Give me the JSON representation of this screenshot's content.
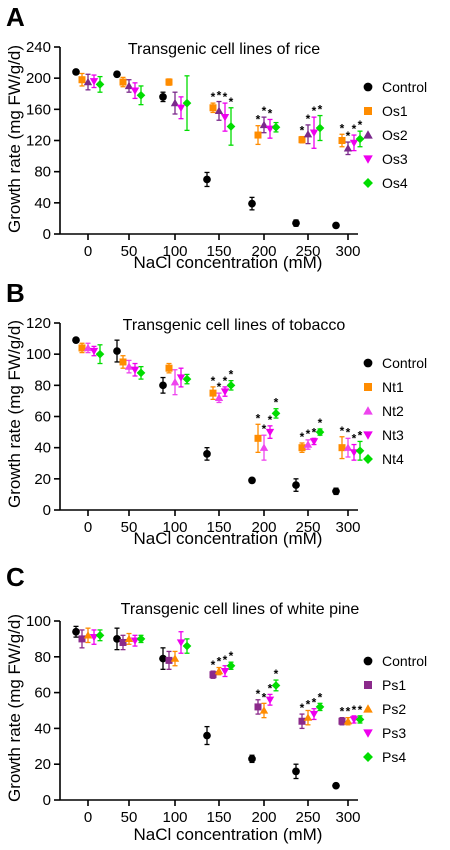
{
  "chart_data": [
    {
      "panel": "A",
      "type": "scatter",
      "title": "Transgenic cell lines of rice",
      "xlabel": "NaCl concentration (mM)",
      "ylabel": "Growth rate (mg FW/g/d)",
      "categories": [
        "0",
        "50",
        "100",
        "150",
        "200",
        "250",
        "300"
      ],
      "ylim": [
        0,
        240
      ],
      "yticks": [
        0,
        40,
        80,
        120,
        160,
        200,
        240
      ],
      "legend": "right",
      "series": [
        {
          "name": "Control",
          "color": "#000000",
          "marker": "circle",
          "values": [
            208,
            205,
            176,
            70,
            39,
            14,
            11
          ],
          "err": [
            2,
            3,
            6,
            9,
            8,
            4,
            2
          ],
          "stars": [
            false,
            false,
            false,
            false,
            false,
            false,
            false
          ]
        },
        {
          "name": "Os1",
          "color": "#FF8C00",
          "marker": "square",
          "values": [
            198,
            195,
            195,
            162,
            127,
            121,
            120
          ],
          "err": [
            8,
            6,
            4,
            6,
            12,
            4,
            8
          ],
          "stars": [
            false,
            false,
            false,
            true,
            true,
            true,
            true
          ]
        },
        {
          "name": "Os2",
          "color": "#7B2A8C",
          "marker": "triangle-up",
          "values": [
            195,
            190,
            168,
            158,
            140,
            128,
            110
          ],
          "err": [
            10,
            8,
            14,
            12,
            10,
            12,
            8
          ],
          "stars": [
            false,
            false,
            false,
            true,
            true,
            true,
            true
          ]
        },
        {
          "name": "Os3",
          "color": "#EE00EE",
          "marker": "triangle-down",
          "values": [
            196,
            184,
            162,
            150,
            135,
            130,
            117
          ],
          "err": [
            8,
            10,
            14,
            18,
            12,
            20,
            10
          ],
          "stars": [
            false,
            false,
            false,
            true,
            true,
            true,
            true
          ]
        },
        {
          "name": "Os4",
          "color": "#00DD00",
          "marker": "diamond",
          "values": [
            192,
            178,
            168,
            138,
            137,
            136,
            122
          ],
          "err": [
            10,
            12,
            35,
            24,
            6,
            16,
            10
          ],
          "stars": [
            false,
            false,
            false,
            true,
            false,
            true,
            true
          ]
        }
      ]
    },
    {
      "panel": "B",
      "type": "scatter",
      "title": "Transgenic cell lines of tobacco",
      "xlabel": "NaCl concentration (mM)",
      "ylabel": "Growth rate (mg FW/g/d)",
      "categories": [
        "0",
        "50",
        "100",
        "150",
        "200",
        "250",
        "300"
      ],
      "ylim": [
        0,
        120
      ],
      "yticks": [
        0,
        20,
        40,
        60,
        80,
        100,
        120
      ],
      "legend": "right",
      "series": [
        {
          "name": "Control",
          "color": "#000000",
          "marker": "circle",
          "values": [
            109,
            102,
            80,
            36,
            19,
            16,
            12
          ],
          "err": [
            1,
            7,
            5,
            4,
            1,
            4,
            2
          ],
          "stars": [
            false,
            false,
            false,
            false,
            false,
            false,
            false
          ]
        },
        {
          "name": "Nt1",
          "color": "#FF8C00",
          "marker": "square",
          "values": [
            104,
            95,
            91,
            75,
            46,
            40,
            40
          ],
          "err": [
            3,
            4,
            3,
            4,
            9,
            3,
            7
          ],
          "stars": [
            false,
            false,
            false,
            true,
            true,
            true,
            true
          ]
        },
        {
          "name": "Nt2",
          "color": "#EE44EE",
          "marker": "triangle-up",
          "values": [
            104,
            92,
            82,
            72,
            40,
            42,
            40
          ],
          "err": [
            3,
            4,
            8,
            3,
            8,
            3,
            6
          ],
          "stars": [
            false,
            false,
            false,
            true,
            true,
            true,
            true
          ]
        },
        {
          "name": "Nt3",
          "color": "#EE00EE",
          "marker": "triangle-down",
          "values": [
            102,
            90,
            85,
            76,
            50,
            44,
            37
          ],
          "err": [
            3,
            4,
            6,
            3,
            4,
            2,
            5
          ],
          "stars": [
            false,
            false,
            false,
            true,
            true,
            true,
            true
          ]
        },
        {
          "name": "Nt4",
          "color": "#00DD00",
          "marker": "diamond",
          "values": [
            100,
            88,
            84,
            80,
            62,
            50,
            38
          ],
          "err": [
            6,
            4,
            3,
            3,
            3,
            2,
            6
          ],
          "stars": [
            false,
            false,
            false,
            true,
            true,
            true,
            true
          ]
        }
      ]
    },
    {
      "panel": "C",
      "type": "scatter",
      "title": "Transgenic cell lines of white pine",
      "xlabel": "NaCl concentration (mM)",
      "ylabel": "Growth rate (mg FW/g/d)",
      "categories": [
        "0",
        "50",
        "100",
        "150",
        "200",
        "250",
        "300"
      ],
      "ylim": [
        0,
        100
      ],
      "yticks": [
        0,
        20,
        40,
        60,
        80,
        100
      ],
      "legend": "right",
      "series": [
        {
          "name": "Control",
          "color": "#000000",
          "marker": "circle",
          "values": [
            94,
            90,
            79,
            36,
            23,
            16,
            8
          ],
          "err": [
            3,
            6,
            6,
            5,
            2,
            4,
            1
          ],
          "stars": [
            false,
            false,
            false,
            false,
            false,
            false,
            false
          ]
        },
        {
          "name": "Ps1",
          "color": "#8B2A8B",
          "marker": "square",
          "values": [
            90,
            88,
            78,
            70,
            52,
            44,
            44
          ],
          "err": [
            5,
            4,
            5,
            2,
            4,
            4,
            2
          ],
          "stars": [
            false,
            false,
            false,
            true,
            true,
            true,
            true
          ]
        },
        {
          "name": "Ps2",
          "color": "#FF8C00",
          "marker": "triangle-up",
          "values": [
            92,
            90,
            79,
            72,
            50,
            46,
            44
          ],
          "err": [
            4,
            3,
            4,
            2,
            4,
            4,
            2
          ],
          "stars": [
            false,
            false,
            false,
            true,
            true,
            true,
            true
          ]
        },
        {
          "name": "Ps3",
          "color": "#EE00EE",
          "marker": "triangle-down",
          "values": [
            91,
            89,
            88,
            72,
            56,
            48,
            45
          ],
          "err": [
            4,
            3,
            6,
            3,
            3,
            3,
            2
          ],
          "stars": [
            false,
            false,
            false,
            true,
            true,
            true,
            true
          ]
        },
        {
          "name": "Ps4",
          "color": "#00DD00",
          "marker": "diamond",
          "values": [
            92,
            90,
            86,
            75,
            64,
            52,
            45
          ],
          "err": [
            3,
            2,
            4,
            2,
            3,
            2,
            2
          ],
          "stars": [
            false,
            false,
            false,
            true,
            true,
            true,
            true
          ]
        }
      ]
    }
  ]
}
